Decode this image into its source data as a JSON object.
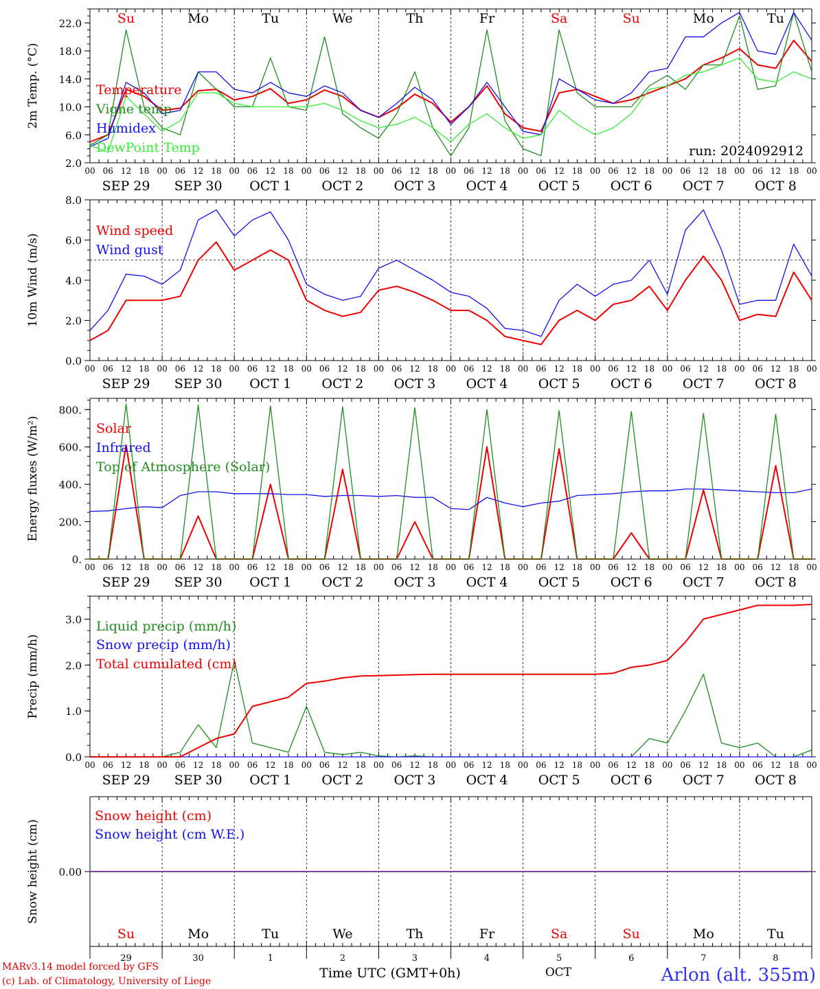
{
  "colors": {
    "red": "#ee0000",
    "green": "#1e8c1e",
    "light_green": "#33ee33",
    "blue": "#1010ee",
    "black": "#000000",
    "purple": "#8040a0"
  },
  "days_top": [
    "Su",
    "Mo",
    "Tu",
    "We",
    "Th",
    "Fr",
    "Sa",
    "Su",
    "Mo",
    "Tu"
  ],
  "days_top_red": [
    true,
    false,
    false,
    false,
    false,
    false,
    true,
    true,
    false,
    false
  ],
  "date_labels": [
    "SEP 29",
    "SEP 30",
    "OCT  1",
    "OCT  2",
    "OCT  3",
    "OCT  4",
    "OCT  5",
    "OCT  6",
    "OCT  7",
    "OCT  8"
  ],
  "hour_labels": [
    "00",
    "06",
    "12",
    "18"
  ],
  "hour_label_end": "00",
  "run_label": "run: 2024092912",
  "bottom_day_numbers": [
    "29",
    "30",
    "1",
    "2",
    "3",
    "4",
    "5",
    "6",
    "7",
    "8"
  ],
  "bottom_month": "OCT",
  "xaxis_title": "Time UTC (GMT+0h)",
  "credits": [
    "MARv3.14 model forced by GFS",
    "(c) Lab. of Climatology, University of Liege"
  ],
  "station": "Arlon (alt. 355m)",
  "chart_data": [
    {
      "type": "line",
      "ylabel": "2m Temp. (°C)",
      "ylim": [
        2.0,
        24.0
      ],
      "yticks": [
        "22.0",
        "18.0",
        "14.0",
        "10.0",
        "6.0",
        "2.0"
      ],
      "x_hours": [
        0,
        6,
        12,
        18,
        24,
        30,
        36,
        42,
        48,
        54,
        60,
        66,
        72,
        78,
        84,
        90,
        96,
        102,
        108,
        114,
        120,
        126,
        132,
        138,
        144,
        150,
        156,
        162,
        168,
        174,
        180,
        186,
        192,
        198,
        204,
        210,
        216,
        222,
        228,
        234,
        240
      ],
      "legend": [
        "Temperature",
        "Vigne temp",
        "Humidex",
        "DewPoint Temp"
      ],
      "series": [
        {
          "name": "Temperature",
          "color": "red",
          "values": [
            5.0,
            6.0,
            12.5,
            11.5,
            9.5,
            9.8,
            12.3,
            12.5,
            11.0,
            11.5,
            12.6,
            10.5,
            11.0,
            12.4,
            11.5,
            9.5,
            8.5,
            9.8,
            11.8,
            10.5,
            7.8,
            10.0,
            13.0,
            9.0,
            7.0,
            6.5,
            12.0,
            12.5,
            11.5,
            10.5,
            11.0,
            12.0,
            13.0,
            14.0,
            16.0,
            17.0,
            18.3,
            16.0,
            15.5,
            19.5,
            16.5
          ]
        },
        {
          "name": "Vigne temp",
          "color": "green",
          "values": [
            4.5,
            6.0,
            21.0,
            10.0,
            7.0,
            6.0,
            15.0,
            12.5,
            10.0,
            10.0,
            17.0,
            10.0,
            9.5,
            20.0,
            9.0,
            7.0,
            5.5,
            9.0,
            15.0,
            7.0,
            3.0,
            7.0,
            21.0,
            8.0,
            4.0,
            3.0,
            21.0,
            12.0,
            10.0,
            10.0,
            10.0,
            13.0,
            14.5,
            12.5,
            16.0,
            16.0,
            23.0,
            12.5,
            13.0,
            23.5,
            15.0
          ]
        },
        {
          "name": "Humidex",
          "color": "blue",
          "values": [
            4.3,
            5.5,
            13.5,
            12.0,
            9.0,
            9.5,
            15.0,
            15.0,
            12.5,
            12.0,
            13.5,
            12.0,
            11.5,
            13.0,
            12.0,
            9.5,
            8.5,
            10.5,
            12.8,
            11.0,
            7.5,
            10.0,
            13.5,
            10.0,
            6.5,
            6.0,
            14.0,
            12.5,
            11.0,
            10.5,
            12.0,
            15.0,
            15.5,
            20.0,
            20.0,
            22.0,
            23.5,
            18.0,
            17.5,
            23.5,
            19.5
          ]
        },
        {
          "name": "DewPoint Temp",
          "color": "light_green",
          "values": [
            4.5,
            3.5,
            11.5,
            9.0,
            6.5,
            8.0,
            12.0,
            12.0,
            10.5,
            10.0,
            10.0,
            10.0,
            10.0,
            10.5,
            9.5,
            8.0,
            7.0,
            7.5,
            8.5,
            7.0,
            5.0,
            7.5,
            9.0,
            7.0,
            5.5,
            6.0,
            9.5,
            7.5,
            6.0,
            7.0,
            9.0,
            12.5,
            13.0,
            14.5,
            15.0,
            16.0,
            17.0,
            14.0,
            13.5,
            15.0,
            14.0
          ]
        }
      ]
    },
    {
      "type": "line",
      "ylabel": "10m Wind (m/s)",
      "ylim": [
        0.0,
        8.0
      ],
      "yticks": [
        "8.0",
        "6.0",
        "4.0",
        "2.0",
        "0.0"
      ],
      "reference_line": 5.0,
      "x_hours": [
        0,
        6,
        12,
        18,
        24,
        30,
        36,
        42,
        48,
        54,
        60,
        66,
        72,
        78,
        84,
        90,
        96,
        102,
        108,
        114,
        120,
        126,
        132,
        138,
        144,
        150,
        156,
        162,
        168,
        174,
        180,
        186,
        192,
        198,
        204,
        210,
        216,
        222,
        228,
        234,
        240
      ],
      "legend": [
        "Wind speed",
        "Wind gust"
      ],
      "series": [
        {
          "name": "Wind speed",
          "color": "red",
          "values": [
            1.0,
            1.5,
            3.0,
            3.0,
            3.0,
            3.2,
            5.0,
            5.9,
            4.5,
            5.0,
            5.5,
            5.0,
            3.0,
            2.5,
            2.2,
            2.4,
            3.5,
            3.7,
            3.4,
            3.0,
            2.5,
            2.5,
            2.0,
            1.2,
            1.0,
            0.8,
            2.0,
            2.5,
            2.0,
            2.8,
            3.0,
            3.7,
            2.5,
            4.0,
            5.2,
            4.0,
            2.0,
            2.3,
            2.2,
            4.4,
            3.0
          ]
        },
        {
          "name": "Wind gust",
          "color": "blue",
          "values": [
            1.5,
            2.5,
            4.3,
            4.2,
            3.8,
            4.5,
            7.0,
            7.5,
            6.2,
            7.0,
            7.4,
            6.0,
            3.8,
            3.3,
            3.0,
            3.2,
            4.6,
            5.0,
            4.5,
            4.0,
            3.4,
            3.2,
            2.6,
            1.6,
            1.5,
            1.2,
            3.0,
            3.8,
            3.2,
            3.8,
            4.0,
            5.0,
            3.3,
            6.5,
            7.5,
            5.5,
            2.8,
            3.0,
            3.0,
            5.8,
            4.2
          ]
        }
      ]
    },
    {
      "type": "line",
      "ylabel": "Energy fluxes (W/m²)",
      "ylim": [
        0,
        860
      ],
      "yticks": [
        "800.",
        "600.",
        "400.",
        "200.",
        "0."
      ],
      "x_hours": [
        0,
        6,
        12,
        18,
        24,
        30,
        36,
        42,
        48,
        54,
        60,
        66,
        72,
        78,
        84,
        90,
        96,
        102,
        108,
        114,
        120,
        126,
        132,
        138,
        144,
        150,
        156,
        162,
        168,
        174,
        180,
        186,
        192,
        198,
        204,
        210,
        216,
        222,
        228,
        234,
        240
      ],
      "legend": [
        "Solar",
        "Infrared",
        "Top of Atmosphere (Solar)"
      ],
      "series": [
        {
          "name": "Solar",
          "color": "red",
          "values": [
            0,
            0,
            610,
            0,
            0,
            0,
            230,
            0,
            0,
            0,
            400,
            0,
            0,
            0,
            480,
            0,
            0,
            0,
            200,
            0,
            0,
            0,
            600,
            0,
            0,
            0,
            590,
            0,
            0,
            0,
            140,
            0,
            0,
            0,
            370,
            0,
            0,
            0,
            500,
            0,
            0
          ]
        },
        {
          "name": "Infrared",
          "color": "blue",
          "values": [
            255,
            258,
            270,
            280,
            275,
            340,
            360,
            360,
            350,
            350,
            350,
            345,
            345,
            335,
            340,
            340,
            335,
            340,
            330,
            330,
            270,
            265,
            330,
            300,
            280,
            300,
            310,
            340,
            345,
            350,
            360,
            365,
            365,
            375,
            375,
            370,
            365,
            360,
            355,
            355,
            375
          ]
        },
        {
          "name": "Top of Atmosphere (Solar)",
          "color": "green",
          "values": [
            0,
            0,
            830,
            0,
            0,
            0,
            825,
            0,
            0,
            0,
            820,
            0,
            0,
            0,
            815,
            0,
            0,
            0,
            810,
            0,
            0,
            0,
            800,
            0,
            0,
            0,
            795,
            0,
            0,
            0,
            790,
            0,
            0,
            0,
            780,
            0,
            0,
            0,
            775,
            0,
            0
          ]
        }
      ]
    },
    {
      "type": "line",
      "ylabel": "Precip (mm/h)",
      "ylim": [
        0.0,
        3.5
      ],
      "yticks": [
        "3.0",
        "2.0",
        "1.0",
        "0.0"
      ],
      "x_hours": [
        0,
        6,
        12,
        18,
        24,
        30,
        36,
        42,
        48,
        54,
        60,
        66,
        72,
        78,
        84,
        90,
        96,
        102,
        108,
        114,
        120,
        126,
        132,
        138,
        144,
        150,
        156,
        162,
        168,
        174,
        180,
        186,
        192,
        198,
        204,
        210,
        216,
        222,
        228,
        234,
        240
      ],
      "legend": [
        "Liquid precip (mm/h)",
        "Snow precip (mm/h)",
        "Total cumulated (cm)"
      ],
      "series": [
        {
          "name": "Liquid precip (mm/h)",
          "color": "green",
          "values": [
            0,
            0,
            0,
            0,
            0,
            0.1,
            0.7,
            0.2,
            2.1,
            0.3,
            0.2,
            0.1,
            1.1,
            0.1,
            0.05,
            0.1,
            0.02,
            0,
            0.02,
            0,
            0,
            0,
            0,
            0,
            0,
            0,
            0,
            0,
            0,
            0,
            0,
            0.4,
            0.3,
            1.0,
            1.8,
            0.3,
            0.2,
            0.3,
            0,
            0,
            0.15
          ]
        },
        {
          "name": "Snow precip (mm/h)",
          "color": "blue",
          "values": [
            0,
            0,
            0,
            0,
            0,
            0,
            0,
            0,
            0,
            0,
            0,
            0,
            0,
            0,
            0,
            0,
            0,
            0,
            0,
            0,
            0,
            0,
            0,
            0,
            0,
            0,
            0,
            0,
            0,
            0,
            0,
            0,
            0,
            0,
            0,
            0,
            0,
            0,
            0,
            0,
            0
          ]
        },
        {
          "name": "Total cumulated (cm)",
          "color": "red",
          "values": [
            0,
            0,
            0,
            0,
            0,
            0,
            0.2,
            0.4,
            0.5,
            1.1,
            1.2,
            1.3,
            1.6,
            1.65,
            1.72,
            1.76,
            1.77,
            1.78,
            1.79,
            1.8,
            1.8,
            1.8,
            1.8,
            1.8,
            1.8,
            1.8,
            1.8,
            1.8,
            1.8,
            1.82,
            1.95,
            2.0,
            2.1,
            2.5,
            3.0,
            3.1,
            3.2,
            3.3,
            3.3,
            3.3,
            3.32
          ]
        }
      ]
    },
    {
      "type": "line",
      "ylabel": "Snow height (cm)",
      "ylim": [
        -1.0,
        1.0
      ],
      "yticks": [
        "0.00"
      ],
      "x_hours": [
        0,
        240
      ],
      "legend": [
        "Snow height (cm)",
        "Snow height (cm W.E.)"
      ],
      "series": [
        {
          "name": "Snow height (cm)",
          "color": "red",
          "values": [
            0,
            0
          ]
        },
        {
          "name": "Snow height (cm W.E.)",
          "color": "blue",
          "values": [
            0,
            0
          ]
        }
      ]
    }
  ]
}
